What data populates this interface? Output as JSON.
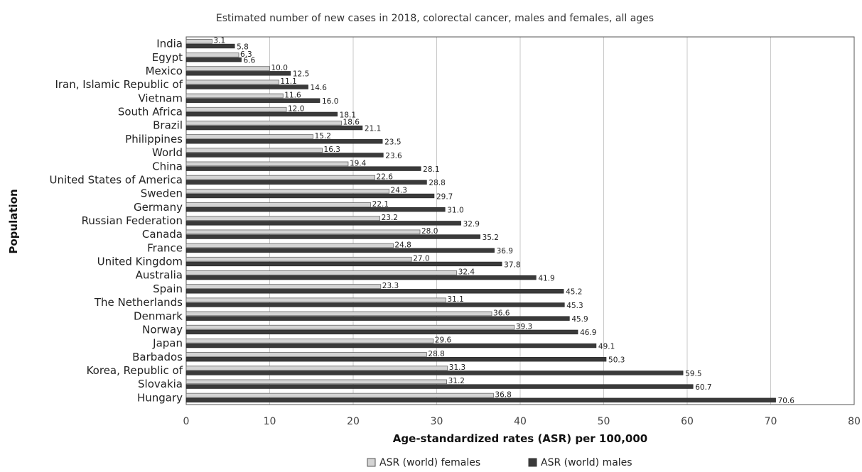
{
  "chart_data": {
    "type": "bar",
    "orientation": "horizontal",
    "title": "Estimated number of new cases in 2018, colorectal cancer, males and females, all ages",
    "xlabel": "Age-standardized rates (ASR) per 100,000",
    "ylabel": "Population",
    "xlim": [
      0,
      80
    ],
    "xticks": [
      0,
      10,
      20,
      30,
      40,
      50,
      60,
      70,
      80
    ],
    "grid": "vertical",
    "legend": "bottom",
    "categories": [
      "India",
      "Egypt",
      "Mexico",
      "Iran, Islamic Republic of",
      "Vietnam",
      "South Africa",
      "Brazil",
      "Philippines",
      "World",
      "China",
      "United States of America",
      "Sweden",
      "Germany",
      "Russian Federation",
      "Canada",
      "France",
      "United Kingdom",
      "Australia",
      "Spain",
      "The Netherlands",
      "Denmark",
      "Norway",
      "Japan",
      "Barbados",
      "Korea, Republic of",
      "Slovakia",
      "Hungary"
    ],
    "series": [
      {
        "name": "ASR (world) females",
        "color": "#d4d4d4",
        "values": [
          3.1,
          6.3,
          10.0,
          11.1,
          11.6,
          12.0,
          18.6,
          15.2,
          16.3,
          19.4,
          22.6,
          24.3,
          22.1,
          23.2,
          28.0,
          24.8,
          27.0,
          32.4,
          23.3,
          31.1,
          36.6,
          39.3,
          29.6,
          28.8,
          31.3,
          31.2,
          36.8
        ],
        "labels": [
          "3.1",
          "6.3",
          "10.0",
          "11.1",
          "11.6",
          "12.0",
          "18.6",
          "15.2",
          "16.3",
          "19.4",
          "22.6",
          "24.3",
          "22.1",
          "23.2",
          "28.0",
          "24.8",
          "27.0",
          "32.4",
          "23.3",
          "31.1",
          "36.6",
          "39.3",
          "29.6",
          "28.8",
          "31.3",
          "31.2",
          "36.8"
        ]
      },
      {
        "name": "ASR (world) males",
        "color": "#3a3a3a",
        "values": [
          5.8,
          6.6,
          12.5,
          14.6,
          16.0,
          18.1,
          21.1,
          23.5,
          23.6,
          28.1,
          28.8,
          29.7,
          31.0,
          32.9,
          35.2,
          36.9,
          37.8,
          41.9,
          45.2,
          45.3,
          45.9,
          46.9,
          49.1,
          50.3,
          59.5,
          60.7,
          70.6
        ],
        "labels": [
          "5.8",
          "6.6",
          "12.5",
          "14.6",
          "16.0",
          "18.1",
          "21.1",
          "23.5",
          "23.6",
          "28.1",
          "28.8",
          "29.7",
          "31.0",
          "32.9",
          "35.2",
          "36.9",
          "37.8",
          "41.9",
          "45.2",
          "45.3",
          "45.9",
          "46.9",
          "49.1",
          "50.3",
          "59.5",
          "60.7",
          "70.6"
        ]
      }
    ]
  }
}
